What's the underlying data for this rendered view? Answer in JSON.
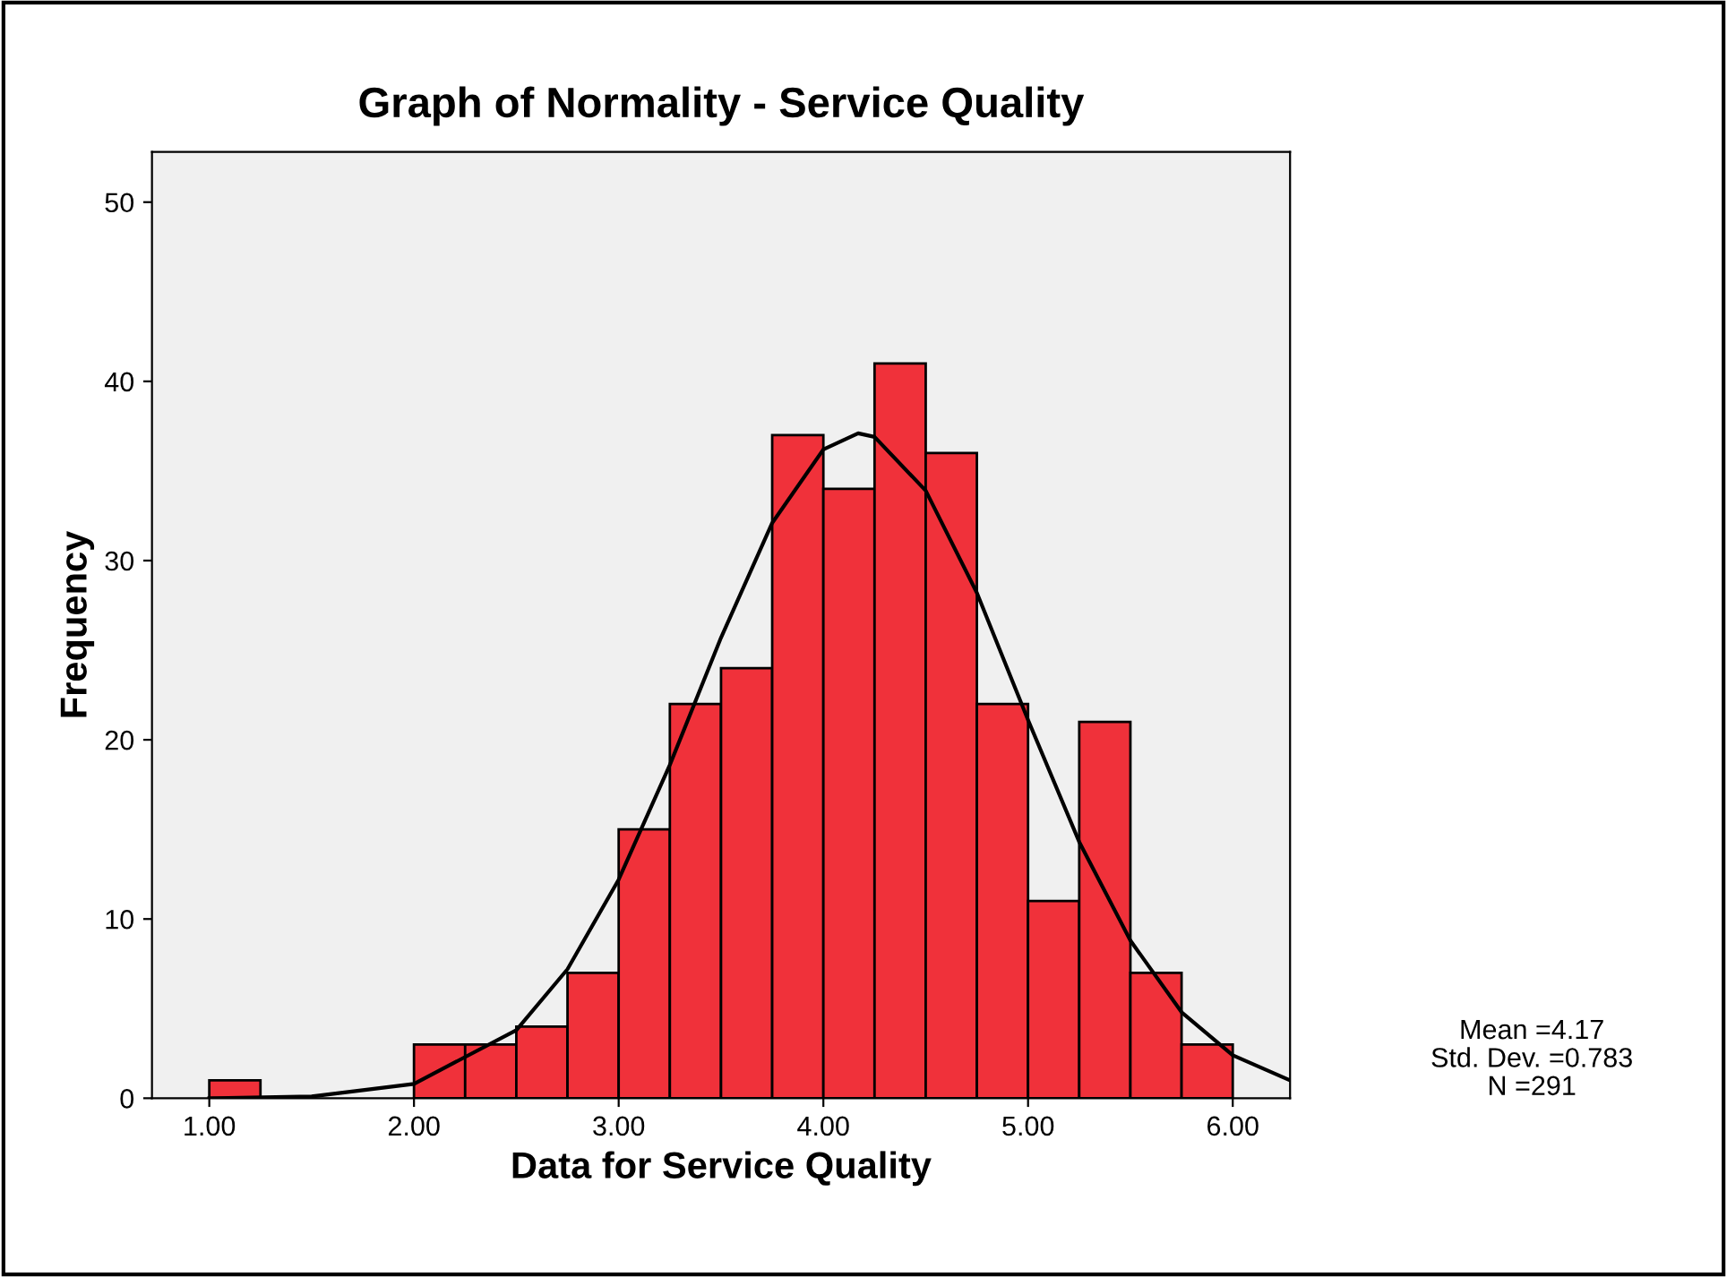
{
  "chart_data": {
    "type": "histogram",
    "title": "Graph of Normality - Service Quality",
    "xlabel": "Data for Service Quality",
    "ylabel": "Frequency",
    "series": [
      {
        "color": "#f0313a",
        "bins": [
          1.0,
          1.25,
          1.5,
          1.75,
          2.0,
          2.25,
          2.5,
          2.75,
          3.0,
          3.25,
          3.5,
          3.75,
          4.0,
          4.25,
          4.5,
          4.75,
          5.0,
          5.25,
          5.5,
          5.75,
          6.0
        ],
        "values": [
          1,
          0,
          0,
          0,
          3,
          3,
          4,
          7,
          15,
          22,
          24,
          37,
          34,
          41,
          36,
          22,
          11,
          21,
          7,
          3
        ]
      },
      {
        "type": "line",
        "color": "#000000",
        "x": [
          1.0,
          1.5,
          2.0,
          2.5,
          2.75,
          3.0,
          3.25,
          3.5,
          3.75,
          4.0,
          4.17,
          4.25,
          4.5,
          4.75,
          5.0,
          5.25,
          5.5,
          5.75,
          6.0,
          6.28
        ],
        "values": [
          0.0,
          0.1,
          0.8,
          3.8,
          7.2,
          12.2,
          18.6,
          25.7,
          32.1,
          36.2,
          37.1,
          36.9,
          33.9,
          28.2,
          21.1,
          14.3,
          8.8,
          4.8,
          2.4,
          1.0
        ]
      }
    ],
    "xlim": [
      0.72,
      6.28
    ],
    "xticks": [
      {
        "value": 1,
        "label": "1.00"
      },
      {
        "value": 2,
        "label": "2.00"
      },
      {
        "value": 3,
        "label": "3.00"
      },
      {
        "value": 4,
        "label": "4.00"
      },
      {
        "value": 5,
        "label": "5.00"
      },
      {
        "value": 6,
        "label": "6.00"
      }
    ],
    "ylim": [
      0,
      52.8
    ],
    "yticks": [
      0,
      10,
      20,
      30,
      40,
      50
    ],
    "grid": false,
    "legend": false,
    "annotations": [
      "Mean =4.17",
      "Std. Dev. =0.783",
      "N =291"
    ]
  }
}
